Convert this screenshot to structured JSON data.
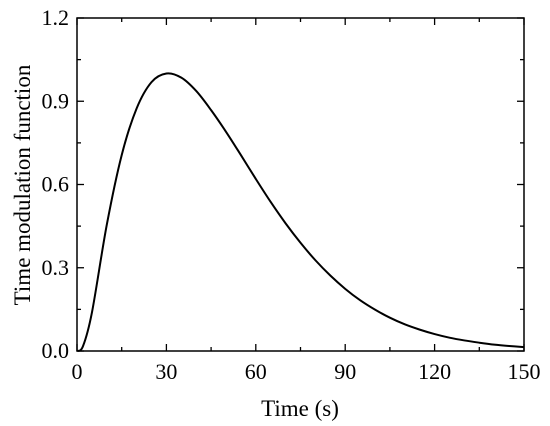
{
  "chart_data": {
    "type": "line",
    "xlabel": "Time (s)",
    "ylabel": "Time modulation function",
    "xlim": [
      0,
      150
    ],
    "ylim": [
      0,
      1.2
    ],
    "xticks": [
      0,
      30,
      60,
      90,
      120,
      150
    ],
    "yticks": [
      0.0,
      0.3,
      0.6,
      0.9,
      1.2
    ],
    "xtick_labels": [
      "0",
      "30",
      "60",
      "90",
      "120",
      "150"
    ],
    "ytick_labels": [
      "0.0",
      "0.3",
      "0.6",
      "0.9",
      "1.2"
    ],
    "grid": false,
    "series": [
      {
        "color": "#000000",
        "x": [
          0,
          2,
          5,
          10,
          15,
          20,
          25,
          30,
          35,
          40,
          45,
          50,
          55,
          60,
          65,
          70,
          75,
          80,
          85,
          90,
          95,
          100,
          105,
          110,
          115,
          120,
          125,
          130,
          135,
          140,
          145,
          150
        ],
        "y": [
          0.0,
          0.017,
          0.138,
          0.455,
          0.706,
          0.874,
          0.969,
          1.0,
          0.985,
          0.937,
          0.868,
          0.79,
          0.706,
          0.62,
          0.537,
          0.46,
          0.39,
          0.327,
          0.272,
          0.224,
          0.183,
          0.149,
          0.12,
          0.096,
          0.077,
          0.061,
          0.048,
          0.038,
          0.03,
          0.023,
          0.018,
          0.014
        ]
      }
    ]
  }
}
